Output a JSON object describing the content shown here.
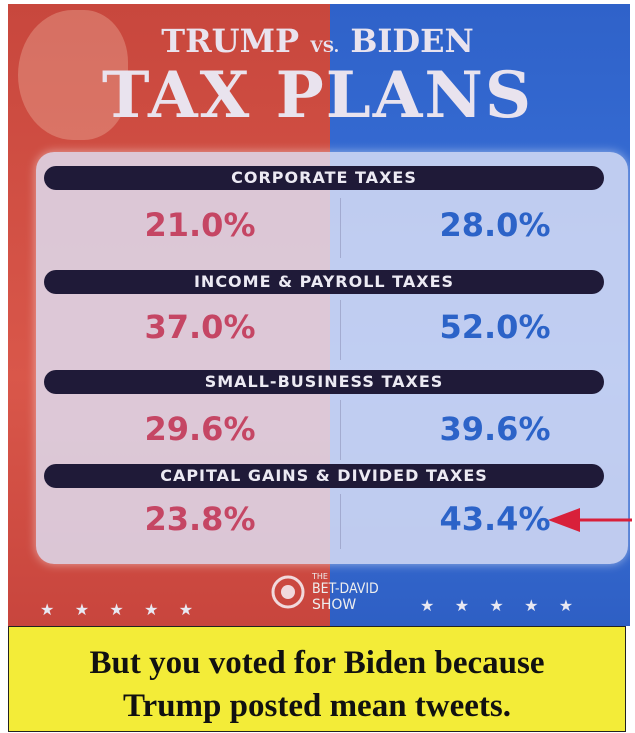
{
  "header": {
    "left": "TRUMP",
    "versus": "VS.",
    "right": "BIDEN",
    "title": "TAX PLANS"
  },
  "table": {
    "rows": [
      {
        "label": "CORPORATE TAXES",
        "trump": "21.0%",
        "biden": "28.0%"
      },
      {
        "label": "INCOME & PAYROLL TAXES",
        "trump": "37.0%",
        "biden": "52.0%"
      },
      {
        "label": "SMALL-BUSINESS TAXES",
        "trump": "29.6%",
        "biden": "39.6%"
      },
      {
        "label": "CAPITAL GAINS & DIVIDED TAXES",
        "trump": "23.8%",
        "biden": "43.4%"
      }
    ]
  },
  "logo": {
    "small": "THE",
    "main": "BET-DAVID",
    "sub": "SHOW"
  },
  "caption": {
    "lines": [
      "But you voted for Biden because",
      "Trump posted mean tweets."
    ]
  }
}
